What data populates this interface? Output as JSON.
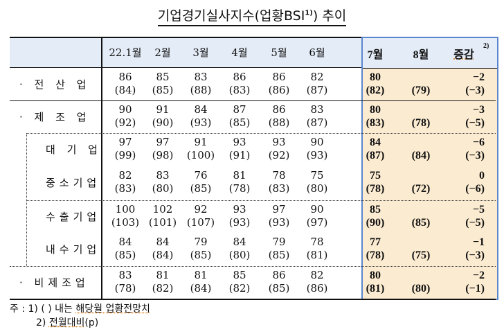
{
  "title": {
    "text": "기업경기실사지수(업황BSI",
    "sup": "1)",
    "tail": ") 추이"
  },
  "header": {
    "columns": [
      "22.1월",
      "2월",
      "3월",
      "4월",
      "5월",
      "6월",
      "7월",
      "8월",
      "증감"
    ],
    "change_sup": "2)"
  },
  "rows": [
    {
      "label": "· 전 산 업",
      "values": [
        "86",
        "85",
        "83",
        "86",
        "86",
        "82"
      ],
      "forecasts": [
        "(84)",
        "(85)",
        "(88)",
        "(83)",
        "(86)",
        "(87)"
      ],
      "jul": "80",
      "jul_f": "(82)",
      "aug_f": "(79)",
      "chg": "−2",
      "chg_f": "(−3)"
    },
    {
      "label": "· 제 조 업",
      "values": [
        "90",
        "91",
        "84",
        "87",
        "86",
        "83"
      ],
      "forecasts": [
        "(92)",
        "(90)",
        "(93)",
        "(85)",
        "(88)",
        "(87)"
      ],
      "jul": "80",
      "jul_f": "(83)",
      "aug_f": "(78)",
      "chg": "−3",
      "chg_f": "(−5)"
    },
    {
      "label": "대 기 업",
      "values": [
        "97",
        "97",
        "91",
        "93",
        "93",
        "90"
      ],
      "forecasts": [
        "(99)",
        "(98)",
        "(100)",
        "(91)",
        "(92)",
        "(93)"
      ],
      "jul": "84",
      "jul_f": "(87)",
      "aug_f": "(84)",
      "chg": "−6",
      "chg_f": "(−3)"
    },
    {
      "label": "중소기업",
      "values": [
        "82",
        "83",
        "76",
        "81",
        "78",
        "75"
      ],
      "forecasts": [
        "(83)",
        "(80)",
        "(85)",
        "(78)",
        "(83)",
        "(80)"
      ],
      "jul": "75",
      "jul_f": "(78)",
      "aug_f": "(72)",
      "chg": "0",
      "chg_f": "(−6)"
    },
    {
      "label": "수출기업",
      "values": [
        "100",
        "102",
        "92",
        "93",
        "97",
        "90"
      ],
      "forecasts": [
        "(103)",
        "(101)",
        "(107)",
        "(93)",
        "(93)",
        "(97)"
      ],
      "jul": "85",
      "jul_f": "(90)",
      "aug_f": "(85)",
      "chg": "−5",
      "chg_f": "(−5)"
    },
    {
      "label": "내수기업",
      "values": [
        "84",
        "84",
        "79",
        "84",
        "79",
        "78"
      ],
      "forecasts": [
        "(85)",
        "(84)",
        "(85)",
        "(80)",
        "(85)",
        "(81)"
      ],
      "jul": "77",
      "jul_f": "(78)",
      "aug_f": "(75)",
      "chg": "−1",
      "chg_f": "(−3)"
    },
    {
      "label": "· 비제조업",
      "values": [
        "83",
        "81",
        "81",
        "85",
        "86",
        "82"
      ],
      "forecasts": [
        "(78)",
        "(82)",
        "(84)",
        "(82)",
        "(85)",
        "(86)"
      ],
      "jul": "80",
      "jul_f": "(81)",
      "aug_f": "(80)",
      "chg": "−2",
      "chg_f": "(−1)"
    }
  ],
  "notes": {
    "line1_prefix": "주 : 1) (   ) 내는 ",
    "line1_u": "해당월 업황전망치",
    "line2_prefix": "2) ",
    "line2_u": "전월대비",
    "line2_suffix": "(p)"
  },
  "colors": {
    "header_bg": "#E4ECF7",
    "highlight_bg": "#FBEBD1",
    "highlight_border": "#5B86CC"
  }
}
